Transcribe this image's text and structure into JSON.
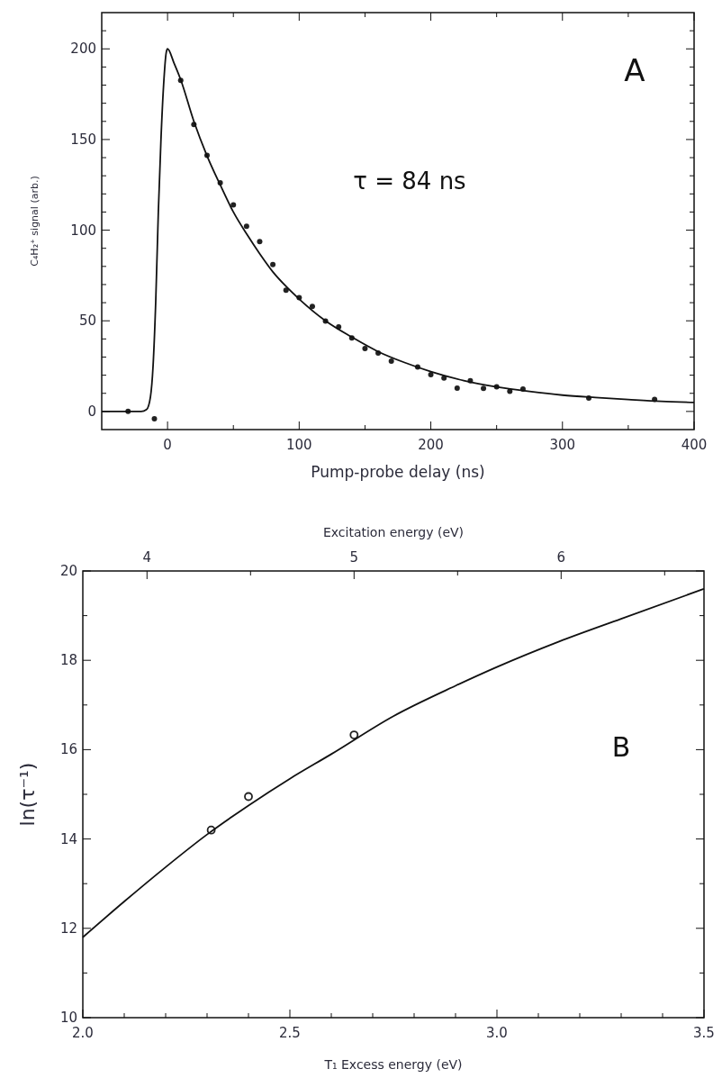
{
  "chart_data": [
    {
      "type": "scatter",
      "xlabel": "Pump-probe delay (ns)",
      "ylabel": "C₄H₂⁺ signal (arb.)",
      "annotations": [
        "A",
        "τ = 84 ns"
      ],
      "xlim": [
        -50,
        400
      ],
      "ylim": [
        -10,
        220
      ],
      "xticks": [
        0,
        {
          "value": 50,
          "label": null
        },
        100,
        {
          "value": 150,
          "label": null
        },
        200,
        {
          "value": 250,
          "label": null
        },
        300,
        {
          "value": 350,
          "label": null
        },
        400
      ],
      "yticks": [
        0,
        {
          "value": 10,
          "label": null
        },
        {
          "value": 20,
          "label": null
        },
        {
          "value": 30,
          "label": null
        },
        {
          "value": 40,
          "label": null
        },
        50,
        {
          "value": 60,
          "label": null
        },
        {
          "value": 70,
          "label": null
        },
        {
          "value": 80,
          "label": null
        },
        {
          "value": 90,
          "label": null
        },
        100,
        {
          "value": 110,
          "label": null
        },
        {
          "value": 120,
          "label": null
        },
        {
          "value": 130,
          "label": null
        },
        {
          "value": 140,
          "label": null
        },
        150,
        {
          "value": 160,
          "label": null
        },
        {
          "value": 170,
          "label": null
        },
        {
          "value": 180,
          "label": null
        },
        {
          "value": 190,
          "label": null
        },
        200,
        {
          "value": 210,
          "label": null
        }
      ],
      "grid": false,
      "series": [
        {
          "color": "#222222",
          "marker": "circle",
          "x": [
            -30,
            -10,
            10,
            20,
            30,
            40,
            50,
            60,
            70,
            80,
            90,
            100,
            110,
            120,
            130,
            140,
            150,
            160,
            170,
            190,
            200,
            210,
            220,
            230,
            240,
            250,
            260,
            270,
            320,
            370
          ],
          "values": [
            0,
            -4,
            182.6,
            158.3,
            141.3,
            126.1,
            114,
            102.1,
            93.7,
            81,
            66.9,
            62.8,
            57.9,
            49.9,
            46.6,
            40.5,
            34.7,
            32.2,
            27.8,
            24.5,
            20.3,
            18.5,
            12.9,
            16.9,
            12.7,
            13.6,
            11.1,
            12.4,
            7.4,
            6.6
          ]
        },
        {
          "type": "line",
          "color": "#111111",
          "line_style": "solid",
          "x": [
            -50,
            -20,
            -16,
            -13,
            -11,
            -9,
            -7,
            -5,
            -3,
            -1,
            0,
            5,
            10,
            20,
            30,
            40,
            50,
            60,
            70,
            80,
            90,
            100,
            120,
            140,
            160,
            180,
            200,
            225,
            250,
            275,
            300,
            325,
            350,
            375,
            400
          ],
          "values": [
            0,
            0,
            1,
            8,
            25,
            60,
            110,
            150,
            180,
            198,
            200,
            192,
            183,
            160,
            141,
            125,
            110,
            98,
            87,
            77,
            69,
            62,
            50,
            41,
            33,
            27,
            22,
            17,
            13.5,
            11,
            9,
            7.7,
            6.6,
            5.6,
            5
          ]
        }
      ]
    },
    {
      "type": "scatter",
      "xlabel": "T₁ Excess energy (eV)",
      "ylabel": "ln(τ⁻¹)",
      "x2label": "Excitation energy (eV)",
      "annotations": [
        "B"
      ],
      "xlim": [
        2.0,
        3.5
      ],
      "ylim": [
        10,
        20
      ],
      "x2lim": [
        3.69,
        6.69
      ],
      "xticks": [
        {
          "value": 2.0,
          "label": "2.0"
        },
        {
          "value": 2.1,
          "label": null
        },
        {
          "value": 2.2,
          "label": null
        },
        {
          "value": 2.3,
          "label": null
        },
        {
          "value": 2.4,
          "label": null
        },
        {
          "value": 2.5,
          "label": "2.5"
        },
        {
          "value": 2.6,
          "label": null
        },
        {
          "value": 2.7,
          "label": null
        },
        {
          "value": 2.8,
          "label": null
        },
        {
          "value": 2.9,
          "label": null
        },
        {
          "value": 3.0,
          "label": "3.0"
        },
        {
          "value": 3.1,
          "label": null
        },
        {
          "value": 3.2,
          "label": null
        },
        {
          "value": 3.3,
          "label": null
        },
        {
          "value": 3.4,
          "label": null
        },
        {
          "value": 3.5,
          "label": "3.5"
        }
      ],
      "yticks": [
        10,
        {
          "value": 11,
          "label": null
        },
        12,
        {
          "value": 13,
          "label": null
        },
        14,
        {
          "value": 15,
          "label": null
        },
        16,
        {
          "value": 17,
          "label": null
        },
        18,
        {
          "value": 19,
          "label": null
        },
        20
      ],
      "x2ticks": [
        4,
        {
          "value": 4.5,
          "label": null
        },
        5,
        {
          "value": 5.5,
          "label": null
        },
        6,
        {
          "value": 6.5,
          "label": null
        }
      ],
      "grid": false,
      "series": [
        {
          "color": "#222222",
          "marker": "circle",
          "x": [
            2.31,
            2.4,
            2.655
          ],
          "values": [
            14.2,
            14.95,
            16.33
          ]
        },
        {
          "type": "line",
          "color": "#111111",
          "line_style": "solid",
          "x": [
            2.0,
            2.1,
            2.2,
            2.3,
            2.4,
            2.5,
            2.6,
            2.75,
            2.9,
            3.0,
            3.15,
            3.3,
            3.5
          ],
          "values": [
            11.8,
            12.6,
            13.37,
            14.1,
            14.75,
            15.35,
            15.9,
            16.75,
            17.43,
            17.85,
            18.42,
            18.93,
            19.6
          ]
        }
      ]
    }
  ]
}
